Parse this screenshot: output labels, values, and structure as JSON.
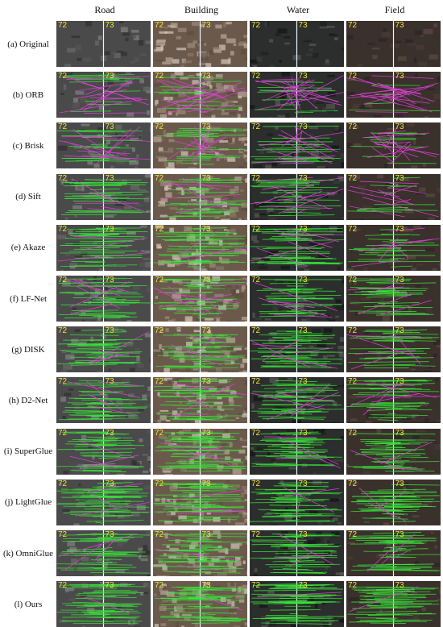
{
  "columns": [
    "Road",
    "Building",
    "Water",
    "Field"
  ],
  "rows": [
    {
      "label": "(a) Original",
      "mode": "none"
    },
    {
      "label": "(b) ORB",
      "mode": "orb"
    },
    {
      "label": "(c) Brisk",
      "mode": "brisk"
    },
    {
      "label": "(d) Sift",
      "mode": "sift"
    },
    {
      "label": "(e) Akaze",
      "mode": "akaze"
    },
    {
      "label": "(f) LF-Net",
      "mode": "lfnet"
    },
    {
      "label": "(g) DISK",
      "mode": "disk"
    },
    {
      "label": "(h) D2-Net",
      "mode": "d2net"
    },
    {
      "label": "(i) SuperGlue",
      "mode": "superglue"
    },
    {
      "label": "(j) LightGlue",
      "mode": "lightglue"
    },
    {
      "label": "(k) OmniGlue",
      "mode": "omniglue"
    },
    {
      "label": "(l) Ours",
      "mode": "ours"
    }
  ],
  "image_numbers": {
    "left": "72",
    "right": "73"
  },
  "colors": {
    "correct_match": "#39e639",
    "wrong_match": "#e040d8",
    "number_label": "#f2e33a",
    "divider": "#e8f4ff"
  },
  "scene_colors": {
    "Road": "#4a4a4a",
    "Building": "#6b5a4c",
    "Water": "#2b2e2c",
    "Field": "#3a302c"
  }
}
